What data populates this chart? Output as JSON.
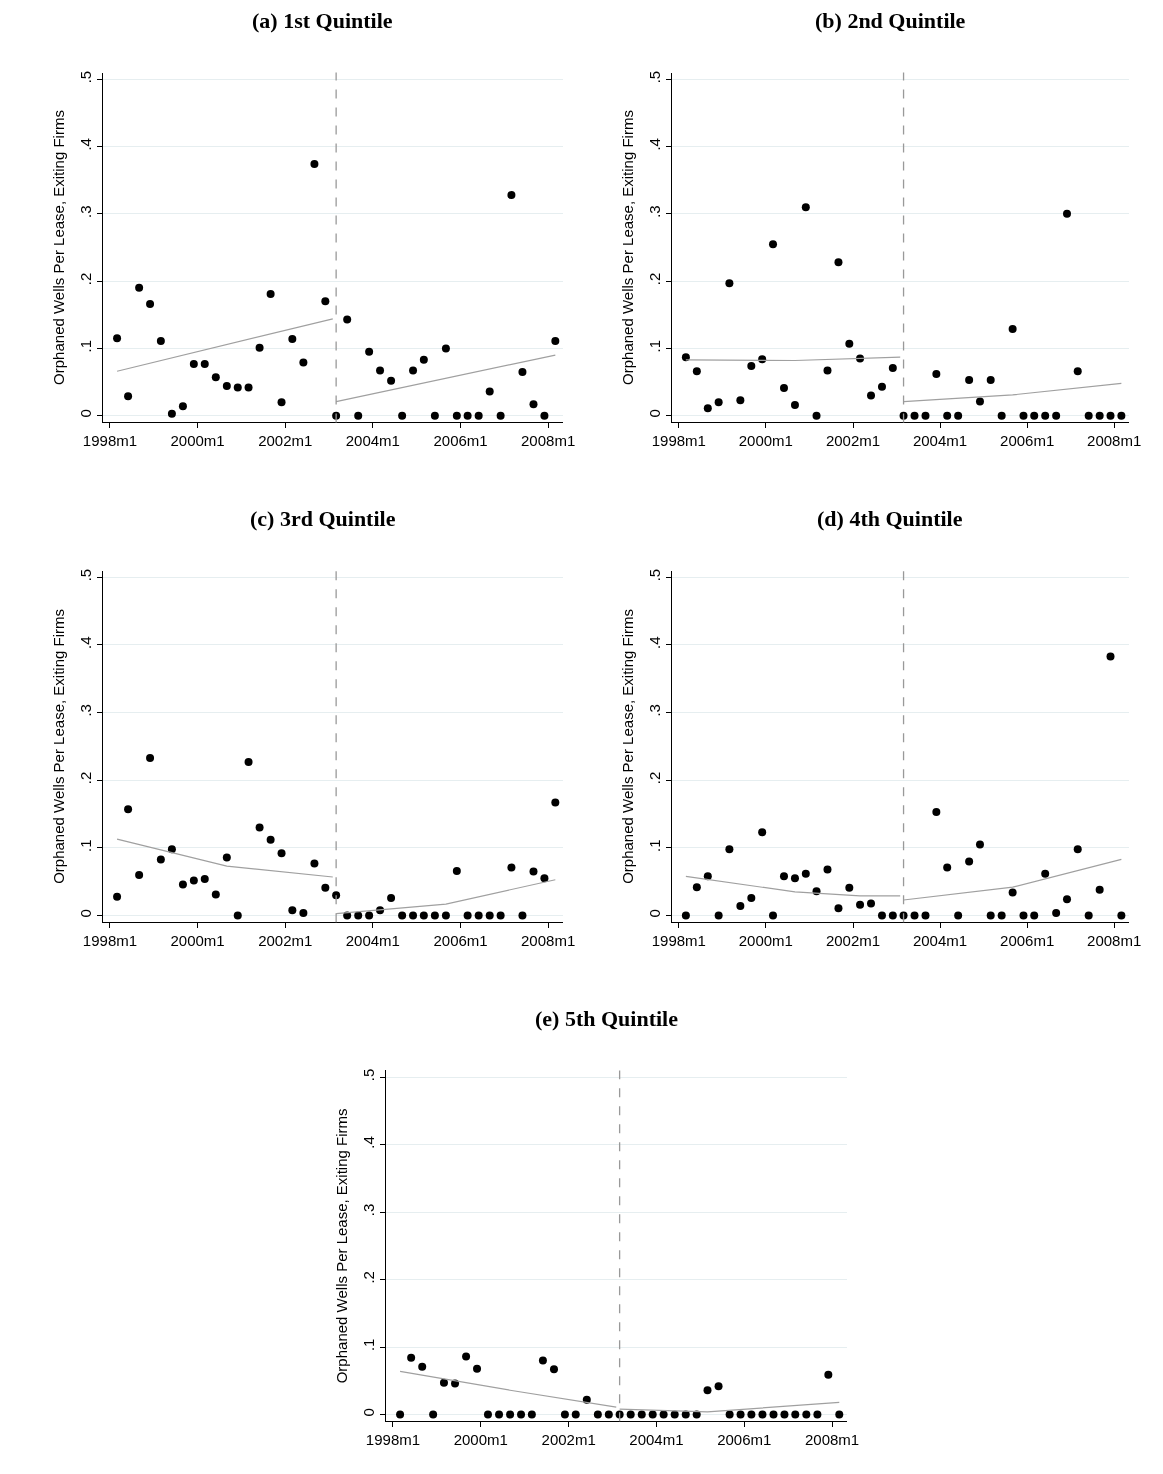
{
  "chart_data": [
    {
      "type": "scatter",
      "title": "(a) 1st Quintile",
      "ylabel": "Orphaned Wells Per Lease, Exiting Firms",
      "grid": "y",
      "x": [
        "1998-03",
        "1998-06",
        "1998-09",
        "1998-12",
        "1999-03",
        "1999-06",
        "1999-09",
        "1999-12",
        "2000-03",
        "2000-06",
        "2000-09",
        "2000-12",
        "2001-03",
        "2001-06",
        "2001-09",
        "2001-12",
        "2002-03",
        "2002-06",
        "2002-09",
        "2002-12",
        "2003-03",
        "2003-06",
        "2003-09",
        "2003-12",
        "2004-03",
        "2004-06",
        "2004-09",
        "2004-12",
        "2005-03",
        "2005-06",
        "2005-09",
        "2005-12",
        "2006-03",
        "2006-06",
        "2006-09",
        "2006-12",
        "2007-03",
        "2007-06",
        "2007-09",
        "2007-12",
        "2008-03"
      ],
      "xlim": [
        "1997-11",
        "2008-05"
      ],
      "ylim": [
        -0.01,
        0.51
      ],
      "xticks": [
        {
          "value": "1998-01",
          "label": "1998m1"
        },
        {
          "value": "2000-01",
          "label": "2000m1"
        },
        {
          "value": "2002-01",
          "label": "2002m1"
        },
        {
          "value": "2004-01",
          "label": "2004m1"
        },
        {
          "value": "2006-01",
          "label": "2006m1"
        },
        {
          "value": "2008-01",
          "label": "2008m1"
        }
      ],
      "yticks": [
        0,
        {
          "value": 0.1,
          "label": ".1"
        },
        {
          "value": 0.2,
          "label": ".2"
        },
        {
          "value": 0.3,
          "label": ".3"
        },
        {
          "value": 0.4,
          "label": ".4"
        },
        {
          "value": 0.5,
          "label": ".5"
        }
      ],
      "ref_lines": [
        {
          "axis": "x",
          "value": "2003-03",
          "color": "#999999",
          "line_style": "dashed"
        }
      ],
      "series": [
        {
          "marker": "circle",
          "color": "#000000",
          "values": [
            0.115,
            0.029,
            0.19,
            0.166,
            0.111,
            0.003,
            0.014,
            0.077,
            0.077,
            0.057,
            0.044,
            0.042,
            0.042,
            0.101,
            0.181,
            0.02,
            0.114,
            0.079,
            0.374,
            0.17,
            0,
            0.143,
            0,
            0.095,
            0.067,
            0.052,
            0,
            0.067,
            0.083,
            0,
            0.1,
            0,
            0,
            0,
            0.036,
            0,
            0.328,
            0.065,
            0.017,
            0,
            0.111
          ]
        },
        {
          "type": "line",
          "color": "#a0a0a0",
          "line_style": "solid",
          "x": [
            "1998-03",
            "2003-02"
          ],
          "values": [
            0.066,
            0.144
          ]
        },
        {
          "type": "line",
          "color": "#a0a0a0",
          "line_style": "solid",
          "x": [
            "2003-03",
            "2008-03"
          ],
          "values": [
            0.021,
            0.09
          ]
        }
      ]
    },
    {
      "type": "scatter",
      "title": "(b) 2nd Quintile",
      "ylabel": "Orphaned Wells Per Lease, Exiting Firms",
      "grid": "y",
      "x": [
        "1998-03",
        "1998-06",
        "1998-09",
        "1998-12",
        "1999-03",
        "1999-06",
        "1999-09",
        "1999-12",
        "2000-03",
        "2000-06",
        "2000-09",
        "2000-12",
        "2001-03",
        "2001-06",
        "2001-09",
        "2001-12",
        "2002-03",
        "2002-06",
        "2002-09",
        "2002-12",
        "2003-03",
        "2003-06",
        "2003-09",
        "2003-12",
        "2004-03",
        "2004-06",
        "2004-09",
        "2004-12",
        "2005-03",
        "2005-06",
        "2005-09",
        "2005-12",
        "2006-03",
        "2006-06",
        "2006-09",
        "2006-12",
        "2007-03",
        "2007-06",
        "2007-09",
        "2007-12",
        "2008-03"
      ],
      "xlim": [
        "1997-11",
        "2008-05"
      ],
      "ylim": [
        -0.01,
        0.51
      ],
      "xticks": [
        {
          "value": "1998-01",
          "label": "1998m1"
        },
        {
          "value": "2000-01",
          "label": "2000m1"
        },
        {
          "value": "2002-01",
          "label": "2002m1"
        },
        {
          "value": "2004-01",
          "label": "2004m1"
        },
        {
          "value": "2006-01",
          "label": "2006m1"
        },
        {
          "value": "2008-01",
          "label": "2008m1"
        }
      ],
      "yticks": [
        0,
        {
          "value": 0.1,
          "label": ".1"
        },
        {
          "value": 0.2,
          "label": ".2"
        },
        {
          "value": 0.3,
          "label": ".3"
        },
        {
          "value": 0.4,
          "label": ".4"
        },
        {
          "value": 0.5,
          "label": ".5"
        }
      ],
      "ref_lines": [
        {
          "axis": "x",
          "value": "2003-03",
          "color": "#999999",
          "line_style": "dashed"
        }
      ],
      "series": [
        {
          "marker": "circle",
          "color": "#000000",
          "values": [
            0.087,
            0.066,
            0.011,
            0.02,
            0.197,
            0.023,
            0.074,
            0.084,
            0.255,
            0.041,
            0.016,
            0.31,
            0,
            0.067,
            0.228,
            0.107,
            0.085,
            0.03,
            0.043,
            0.071,
            0,
            0,
            0,
            0.062,
            0,
            0,
            0.053,
            0.021,
            0.053,
            0,
            0.129,
            0,
            0,
            0,
            0,
            0.3,
            0.066,
            0,
            0,
            0,
            0
          ]
        },
        {
          "type": "line",
          "color": "#a0a0a0",
          "line_style": "solid",
          "x": [
            "1998-03",
            "2000-09",
            "2003-02"
          ],
          "values": [
            0.083,
            0.082,
            0.087
          ]
        },
        {
          "type": "line",
          "color": "#a0a0a0",
          "line_style": "solid",
          "x": [
            "2003-03",
            "2005-09",
            "2008-03"
          ],
          "values": [
            0.021,
            0.031,
            0.048
          ]
        }
      ]
    },
    {
      "type": "scatter",
      "title": "(c) 3rd Quintile",
      "ylabel": "Orphaned Wells Per Lease, Exiting Firms",
      "grid": "y",
      "x": [
        "1998-03",
        "1998-06",
        "1998-09",
        "1998-12",
        "1999-03",
        "1999-06",
        "1999-09",
        "1999-12",
        "2000-03",
        "2000-06",
        "2000-09",
        "2000-12",
        "2001-03",
        "2001-06",
        "2001-09",
        "2001-12",
        "2002-03",
        "2002-06",
        "2002-09",
        "2002-12",
        "2003-03",
        "2003-06",
        "2003-09",
        "2003-12",
        "2004-03",
        "2004-06",
        "2004-09",
        "2004-12",
        "2005-03",
        "2005-06",
        "2005-09",
        "2005-12",
        "2006-03",
        "2006-06",
        "2006-09",
        "2006-12",
        "2007-03",
        "2007-06",
        "2007-09",
        "2007-12",
        "2008-03"
      ],
      "xlim": [
        "1997-11",
        "2008-05"
      ],
      "ylim": [
        -0.01,
        0.51
      ],
      "xticks": [
        {
          "value": "1998-01",
          "label": "1998m1"
        },
        {
          "value": "2000-01",
          "label": "2000m1"
        },
        {
          "value": "2002-01",
          "label": "2002m1"
        },
        {
          "value": "2004-01",
          "label": "2004m1"
        },
        {
          "value": "2006-01",
          "label": "2006m1"
        },
        {
          "value": "2008-01",
          "label": "2008m1"
        }
      ],
      "yticks": [
        0,
        {
          "value": 0.1,
          "label": ".1"
        },
        {
          "value": 0.2,
          "label": ".2"
        },
        {
          "value": 0.3,
          "label": ".3"
        },
        {
          "value": 0.4,
          "label": ".4"
        },
        {
          "value": 0.5,
          "label": ".5"
        }
      ],
      "ref_lines": [
        {
          "axis": "x",
          "value": "2003-03",
          "color": "#999999",
          "line_style": "dashed"
        }
      ],
      "series": [
        {
          "marker": "circle",
          "color": "#000000",
          "values": [
            0.028,
            0.157,
            0.06,
            0.233,
            0.083,
            0.098,
            0.046,
            0.052,
            0.054,
            0.031,
            0.086,
            0,
            0.227,
            0.13,
            0.112,
            0.092,
            0.008,
            0.004,
            0.077,
            0.041,
            0.03,
            0,
            0,
            0,
            0.008,
            0.026,
            0,
            0,
            0,
            0,
            0,
            0.066,
            0,
            0,
            0,
            0,
            0.071,
            0,
            0.065,
            0.055,
            0.167
          ]
        },
        {
          "type": "line",
          "color": "#a0a0a0",
          "line_style": "solid",
          "x": [
            "1998-03",
            "2000-09",
            "2003-02"
          ],
          "values": [
            0.113,
            0.073,
            0.057
          ]
        },
        {
          "type": "line",
          "color": "#a0a0a0",
          "line_style": "solid",
          "x": [
            "2003-03",
            "2005-09",
            "2008-03"
          ],
          "values": [
            0.003,
            0.017,
            0.053
          ]
        }
      ]
    },
    {
      "type": "scatter",
      "title": "(d) 4th Quintile",
      "ylabel": "Orphaned Wells Per Lease, Exiting Firms",
      "grid": "y",
      "x": [
        "1998-03",
        "1998-06",
        "1998-09",
        "1998-12",
        "1999-03",
        "1999-06",
        "1999-09",
        "1999-12",
        "2000-03",
        "2000-06",
        "2000-09",
        "2000-12",
        "2001-03",
        "2001-06",
        "2001-09",
        "2001-12",
        "2002-03",
        "2002-06",
        "2002-09",
        "2002-12",
        "2003-03",
        "2003-06",
        "2003-09",
        "2003-12",
        "2004-03",
        "2004-06",
        "2004-09",
        "2004-12",
        "2005-03",
        "2005-06",
        "2005-09",
        "2005-12",
        "2006-03",
        "2006-06",
        "2006-09",
        "2006-12",
        "2007-03",
        "2007-06",
        "2007-09",
        "2007-12",
        "2008-03"
      ],
      "xlim": [
        "1997-11",
        "2008-05"
      ],
      "ylim": [
        -0.01,
        0.51
      ],
      "xticks": [
        {
          "value": "1998-01",
          "label": "1998m1"
        },
        {
          "value": "2000-01",
          "label": "2000m1"
        },
        {
          "value": "2002-01",
          "label": "2002m1"
        },
        {
          "value": "2004-01",
          "label": "2004m1"
        },
        {
          "value": "2006-01",
          "label": "2006m1"
        },
        {
          "value": "2008-01",
          "label": "2008m1"
        }
      ],
      "yticks": [
        0,
        {
          "value": 0.1,
          "label": ".1"
        },
        {
          "value": 0.2,
          "label": ".2"
        },
        {
          "value": 0.3,
          "label": ".3"
        },
        {
          "value": 0.4,
          "label": ".4"
        },
        {
          "value": 0.5,
          "label": ".5"
        }
      ],
      "ref_lines": [
        {
          "axis": "x",
          "value": "2003-03",
          "color": "#999999",
          "line_style": "dashed"
        }
      ],
      "series": [
        {
          "marker": "circle",
          "color": "#000000",
          "values": [
            0,
            0.042,
            0.058,
            0,
            0.098,
            0.014,
            0.026,
            0.123,
            0,
            0.058,
            0.055,
            0.062,
            0.036,
            0.068,
            0.011,
            0.041,
            0.016,
            0.018,
            0,
            0,
            0,
            0,
            0,
            0.153,
            0.071,
            0,
            0.08,
            0.105,
            0,
            0,
            0.034,
            0,
            0,
            0.062,
            0.004,
            0.024,
            0.098,
            0,
            0.038,
            0.383,
            0
          ]
        },
        {
          "type": "line",
          "color": "#a0a0a0",
          "line_style": "solid",
          "x": [
            "1998-03",
            "2000-09",
            "2002-03",
            "2003-02"
          ],
          "values": [
            0.058,
            0.035,
            0.029,
            0.029
          ]
        },
        {
          "type": "line",
          "color": "#a0a0a0",
          "line_style": "solid",
          "x": [
            "2003-03",
            "2005-09",
            "2008-03"
          ],
          "values": [
            0.023,
            0.042,
            0.083
          ]
        }
      ]
    },
    {
      "type": "scatter",
      "title": "(e) 5th Quintile",
      "ylabel": "Orphaned Wells Per Lease, Exiting Firms",
      "grid": "y",
      "x": [
        "1998-03",
        "1998-06",
        "1998-09",
        "1998-12",
        "1999-03",
        "1999-06",
        "1999-09",
        "1999-12",
        "2000-03",
        "2000-06",
        "2000-09",
        "2000-12",
        "2001-03",
        "2001-06",
        "2001-09",
        "2001-12",
        "2002-03",
        "2002-06",
        "2002-09",
        "2002-12",
        "2003-03",
        "2003-06",
        "2003-09",
        "2003-12",
        "2004-03",
        "2004-06",
        "2004-09",
        "2004-12",
        "2005-03",
        "2005-06",
        "2005-09",
        "2005-12",
        "2006-03",
        "2006-06",
        "2006-09",
        "2006-12",
        "2007-03",
        "2007-06",
        "2007-09",
        "2007-12",
        "2008-03"
      ],
      "xlim": [
        "1997-11",
        "2008-05"
      ],
      "ylim": [
        -0.01,
        0.51
      ],
      "xticks": [
        {
          "value": "1998-01",
          "label": "1998m1"
        },
        {
          "value": "2000-01",
          "label": "2000m1"
        },
        {
          "value": "2002-01",
          "label": "2002m1"
        },
        {
          "value": "2004-01",
          "label": "2004m1"
        },
        {
          "value": "2006-01",
          "label": "2006m1"
        },
        {
          "value": "2008-01",
          "label": "2008m1"
        }
      ],
      "yticks": [
        0,
        {
          "value": 0.1,
          "label": ".1"
        },
        {
          "value": 0.2,
          "label": ".2"
        },
        {
          "value": 0.3,
          "label": ".3"
        },
        {
          "value": 0.4,
          "label": ".4"
        },
        {
          "value": 0.5,
          "label": ".5"
        }
      ],
      "ref_lines": [
        {
          "axis": "x",
          "value": "2003-03",
          "color": "#999999",
          "line_style": "dashed"
        }
      ],
      "series": [
        {
          "marker": "circle",
          "color": "#000000",
          "values": [
            0,
            0.084,
            0.071,
            0,
            0.047,
            0.046,
            0.086,
            0.068,
            0,
            0,
            0,
            0,
            0,
            0.08,
            0.067,
            0,
            0,
            0.022,
            0,
            0,
            0,
            0,
            0,
            0,
            0,
            0,
            0,
            0,
            0.036,
            0.042,
            0,
            0,
            0,
            0,
            0,
            0,
            0,
            0,
            0,
            0.059,
            0
          ]
        },
        {
          "type": "line",
          "color": "#a0a0a0",
          "line_style": "solid",
          "x": [
            "1998-03",
            "2000-09",
            "2003-02"
          ],
          "values": [
            0.064,
            0.036,
            0.011
          ]
        },
        {
          "type": "line",
          "color": "#a0a0a0",
          "line_style": "solid",
          "x": [
            "2003-03",
            "2005-03",
            "2008-03"
          ],
          "values": [
            0.008,
            0.004,
            0.018
          ]
        }
      ]
    }
  ]
}
